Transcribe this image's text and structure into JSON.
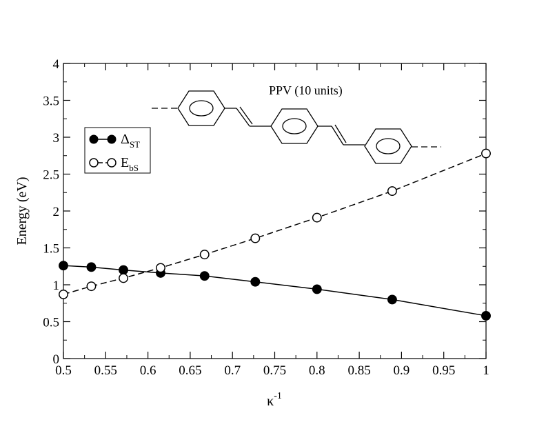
{
  "chart_data": {
    "type": "line",
    "title": "",
    "xlabel": "κ",
    "xlabel_superscript": "-1",
    "ylabel": "Energy (eV)",
    "xlim": [
      0.5,
      1.0
    ],
    "ylim": [
      0,
      4
    ],
    "xticks": [
      "0.5",
      "0.55",
      "0.6",
      "0.65",
      "0.7",
      "0.75",
      "0.8",
      "0.85",
      "0.9",
      "0.95",
      "1"
    ],
    "yticks": [
      "0",
      "0.5",
      "1",
      "1.5",
      "2",
      "2.5",
      "3",
      "3.5",
      "4"
    ],
    "grid": false,
    "legend_position": "upper-left",
    "series": [
      {
        "name": "Δ",
        "name_subscript": "ST",
        "marker": "filled-circle",
        "line": "solid",
        "x": [
          0.5,
          0.533,
          0.571,
          0.615,
          0.667,
          0.727,
          0.8,
          0.889,
          1.0
        ],
        "values": [
          1.26,
          1.24,
          1.2,
          1.16,
          1.12,
          1.04,
          0.94,
          0.8,
          0.58
        ]
      },
      {
        "name": "E",
        "name_subscript": "bS",
        "marker": "open-circle",
        "line": "dashed",
        "x": [
          0.5,
          0.533,
          0.571,
          0.615,
          0.667,
          0.727,
          0.8,
          0.889,
          1.0
        ],
        "values": [
          0.87,
          0.98,
          1.09,
          1.23,
          1.41,
          1.63,
          1.91,
          2.27,
          2.78
        ]
      }
    ],
    "annotations": [
      {
        "text": "PPV (10 units)"
      }
    ]
  }
}
